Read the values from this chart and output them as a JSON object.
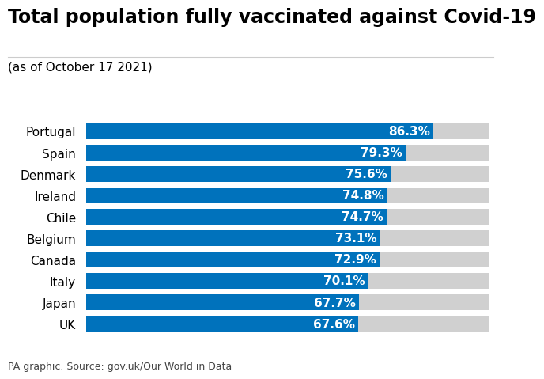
{
  "title": "Total population fully vaccinated against Covid-19",
  "subtitle": "(as of October 17 2021)",
  "footnote": "PA graphic. Source: gov.uk/Our World in Data",
  "categories": [
    "Portugal",
    "Spain",
    "Denmark",
    "Ireland",
    "Chile",
    "Belgium",
    "Canada",
    "Italy",
    "Japan",
    "UK"
  ],
  "values": [
    86.3,
    79.3,
    75.6,
    74.8,
    74.7,
    73.1,
    72.9,
    70.1,
    67.7,
    67.6
  ],
  "bar_color": "#0072BC",
  "bg_bar_color": "#D0D0D0",
  "xlim_max": 100,
  "bar_label_color": "#FFFFFF",
  "background_color": "#FFFFFF",
  "title_fontsize": 17,
  "subtitle_fontsize": 11,
  "label_fontsize": 11,
  "value_fontsize": 11,
  "footnote_fontsize": 9,
  "title_color": "#000000",
  "subtitle_color": "#000000",
  "footnote_color": "#444444",
  "category_color": "#000000"
}
